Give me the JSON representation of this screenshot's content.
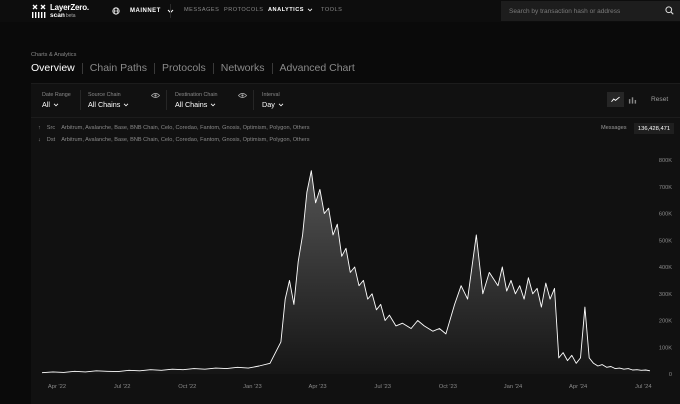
{
  "app": {
    "logo_line1": "LayerZero.",
    "logo_line2": "scan",
    "logo_badge": "beta"
  },
  "network": {
    "label": "MAINNET"
  },
  "nav": {
    "messages": "MESSAGES",
    "protocols": "PROTOCOLS",
    "analytics": "ANALYTICS",
    "tools": "TOOLS"
  },
  "search": {
    "placeholder": "Search by transaction hash or address"
  },
  "breadcrumb": "Charts & Analytics",
  "tabs": [
    {
      "label": "Overview",
      "active": true
    },
    {
      "label": "Chain Paths",
      "active": false
    },
    {
      "label": "Protocols",
      "active": false
    },
    {
      "label": "Networks",
      "active": false
    },
    {
      "label": "Advanced Chart",
      "active": false
    }
  ],
  "filters": {
    "date_range": {
      "label": "Date Range",
      "value": "All"
    },
    "source_chain": {
      "label": "Source Chain",
      "value": "All Chains"
    },
    "destination_chain": {
      "label": "Destination Chain",
      "value": "All Chains"
    },
    "interval": {
      "label": "Interval",
      "value": "Day"
    }
  },
  "reset_label": "Reset",
  "route": {
    "src_tag": "Src",
    "src_chains": "Arbitrum, Avalanche, Base, BNB Chain, Celo, Coredao, Fantom, Gnosis, Optimism, Polygon, Others",
    "dst_tag": "Dst",
    "dst_chains": "Arbitrum, Avalanche, Base, BNB Chain, Celo, Coredao, Fantom, Gnosis, Optimism, Polygon, Others"
  },
  "messages": {
    "label": "Messages",
    "count": "136,428,471"
  },
  "colors": {
    "background": "#0a0a0a",
    "panel": "#111111",
    "line": "#ffffff"
  },
  "chart_data": {
    "type": "area",
    "y_ticks": [
      "800K",
      "700K",
      "600K",
      "500K",
      "400K",
      "300K",
      "200K",
      "100K",
      "0"
    ],
    "x_ticks": [
      "Apr '22",
      "Jul '22",
      "Oct '22",
      "Jan '23",
      "Apr '23",
      "Jul '23",
      "Oct '23",
      "Jan '24",
      "Apr '24",
      "Jul '24"
    ],
    "ylim": [
      0,
      800000
    ],
    "grid": false,
    "series": [
      {
        "x_months": [
          0,
          0.5,
          1,
          1.5,
          2,
          2.5,
          3,
          3.5,
          4,
          4.5,
          5,
          5.5,
          6,
          6.5,
          7,
          7.5,
          8,
          8.5,
          9,
          9.5,
          10,
          10.5,
          11,
          11.2,
          11.4,
          11.6,
          11.8,
          12,
          12.2,
          12.4,
          12.6,
          12.8,
          13,
          13.2,
          13.4,
          13.6,
          13.8,
          14,
          14.2,
          14.4,
          14.6,
          14.8,
          15,
          15.2,
          15.4,
          15.6,
          15.8,
          16,
          16.3,
          16.6,
          17,
          17.3,
          17.6,
          18,
          18.3,
          18.6,
          19,
          19.3,
          19.6,
          20,
          20.3,
          20.6,
          21,
          21.2,
          21.4,
          21.6,
          21.8,
          22,
          22.2,
          22.4,
          22.6,
          22.8,
          23,
          23.2,
          23.4,
          23.6,
          23.8,
          24,
          24.2,
          24.4,
          24.6,
          24.8,
          25,
          25.2,
          25.4,
          25.6,
          25.8,
          26,
          26.2,
          26.4,
          26.6,
          26.8,
          27,
          27.2,
          27.4,
          27.6,
          27.8,
          28
        ],
        "values": [
          5000,
          8000,
          6000,
          10000,
          8000,
          12000,
          10000,
          9000,
          14000,
          12000,
          16000,
          14000,
          18000,
          16000,
          20000,
          18000,
          22000,
          20000,
          25000,
          22000,
          30000,
          40000,
          120000,
          280000,
          350000,
          260000,
          420000,
          520000,
          680000,
          760000,
          640000,
          690000,
          600000,
          620000,
          520000,
          560000,
          440000,
          470000,
          380000,
          400000,
          330000,
          350000,
          280000,
          300000,
          240000,
          260000,
          200000,
          220000,
          180000,
          190000,
          170000,
          200000,
          180000,
          160000,
          170000,
          150000,
          260000,
          330000,
          280000,
          520000,
          300000,
          380000,
          330000,
          400000,
          310000,
          350000,
          300000,
          330000,
          280000,
          360000,
          300000,
          320000,
          250000,
          340000,
          280000,
          320000,
          60000,
          80000,
          50000,
          70000,
          40000,
          60000,
          250000,
          60000,
          40000,
          30000,
          35000,
          25000,
          28000,
          20000,
          22000,
          18000,
          20000,
          15000,
          16000,
          14000,
          15000,
          12000
        ]
      }
    ]
  }
}
